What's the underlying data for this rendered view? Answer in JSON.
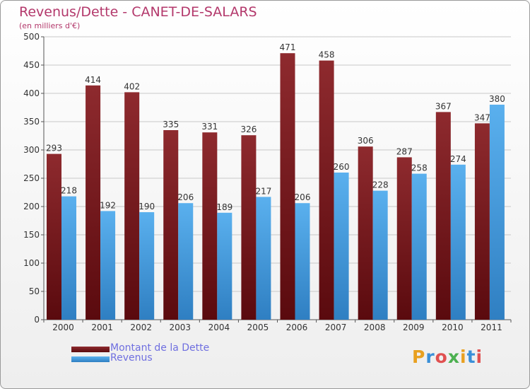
{
  "chart_data": {
    "type": "bar",
    "title": "Revenus/Dette - CANET-DE-SALARS",
    "subtitle": "(en milliers d'€)",
    "categories": [
      "2000",
      "2001",
      "2002",
      "2003",
      "2004",
      "2005",
      "2006",
      "2007",
      "2008",
      "2009",
      "2010",
      "2011"
    ],
    "series": [
      {
        "name": "Montant de la Dette",
        "color": "#7d1f22",
        "values": [
          293,
          414,
          402,
          335,
          331,
          326,
          471,
          458,
          306,
          287,
          367,
          347
        ]
      },
      {
        "name": "Revenus",
        "color": "#4aa3e6",
        "values": [
          218,
          192,
          190,
          206,
          189,
          217,
          206,
          260,
          228,
          258,
          274,
          380
        ]
      }
    ],
    "y_ticks": [
      0,
      50,
      100,
      150,
      200,
      250,
      300,
      350,
      400,
      450,
      500
    ],
    "ylim": [
      0,
      500
    ],
    "grid": true,
    "legend_position": "bottom-left"
  },
  "logo": {
    "text": "Proxiti",
    "colors": [
      "#e8a020",
      "#3a8fd8",
      "#e05050",
      "#4cb050",
      "#e8a020",
      "#3a8fd8",
      "#e05050"
    ]
  }
}
